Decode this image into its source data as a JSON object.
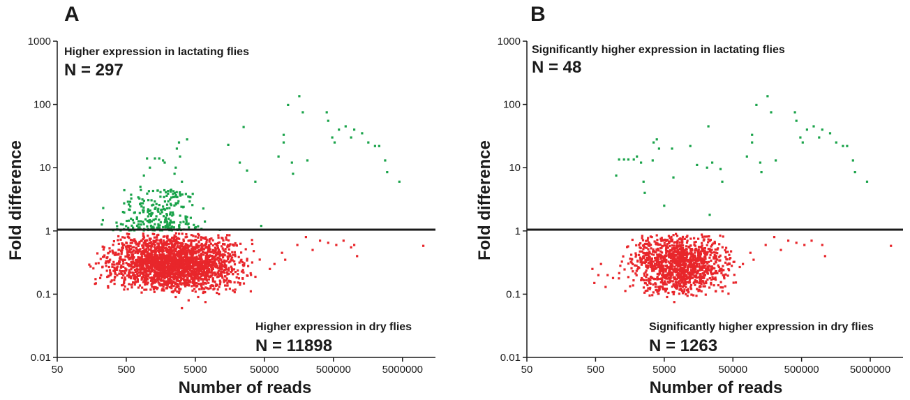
{
  "colors": {
    "up": "#1aa34a",
    "down": "#e8262b",
    "axis": "#1a1a1a"
  },
  "chart_data": [
    {
      "type": "scatter",
      "panel_label": "A",
      "xlabel": "Number of reads",
      "ylabel": "Fold difference",
      "x_scale": "log",
      "y_scale": "log",
      "xlim": [
        50,
        15000000
      ],
      "ylim": [
        0.01,
        1000
      ],
      "x_ticks": [
        50,
        500,
        5000,
        50000,
        500000,
        5000000
      ],
      "x_tick_labels": [
        "50",
        "500",
        "5000",
        "50000",
        "500000",
        "5000000"
      ],
      "y_ticks": [
        0.01,
        0.1,
        1,
        10,
        100,
        1000
      ],
      "y_tick_labels": [
        "0.01",
        "0.1",
        "1",
        "10",
        "100",
        "1000"
      ],
      "reference_line_y": 1,
      "annotations": {
        "upper_label": "Higher expression in lactating flies",
        "upper_n": "N = 297",
        "lower_label": "Higher expression in dry flies",
        "lower_n": "N = 11898"
      },
      "series": [
        {
          "role": "up",
          "points": [
            [
              25000,
              44
            ],
            [
              110000,
              98
            ],
            [
              160000,
              135
            ],
            [
              180000,
              75
            ],
            [
              95000,
              33
            ],
            [
              95000,
              25
            ],
            [
              15000,
              23
            ],
            [
              22000,
              12
            ],
            [
              28000,
              9
            ],
            [
              37000,
              6
            ],
            [
              130000,
              8
            ],
            [
              125000,
              12
            ],
            [
              80000,
              15
            ],
            [
              210000,
              13
            ],
            [
              400000,
              75
            ],
            [
              420000,
              55
            ],
            [
              480000,
              30
            ],
            [
              520000,
              25
            ],
            [
              750000,
              45
            ],
            [
              600000,
              40
            ],
            [
              900000,
              30
            ],
            [
              1000000,
              40
            ],
            [
              1300000,
              35
            ],
            [
              1600000,
              25
            ],
            [
              2000000,
              22
            ],
            [
              2300000,
              22
            ],
            [
              2800000,
              13
            ],
            [
              3000000,
              8.5
            ],
            [
              4500000,
              6
            ],
            [
              3800,
              28
            ],
            [
              2900,
              25
            ],
            [
              3000,
              15
            ],
            [
              2600,
              10
            ],
            [
              2500,
              8
            ],
            [
              3200,
              6
            ],
            [
              1300,
              14
            ],
            [
              1000,
              14
            ],
            [
              1500,
              14
            ],
            [
              1700,
              13
            ],
            [
              1100,
              10
            ],
            [
              900,
              7.5
            ],
            [
              800,
              5
            ],
            [
              1800,
              12
            ],
            [
              2700,
              20
            ],
            [
              45000,
              1.2
            ]
          ],
          "cluster": {
            "x_range": [
              180,
              12000
            ],
            "y_range": [
              1.02,
              4.5
            ],
            "n": 260
          }
        },
        {
          "role": "down",
          "points": [
            [
              150000,
              0.6
            ],
            [
              200000,
              0.8
            ],
            [
              250000,
              0.5
            ],
            [
              320000,
              0.7
            ],
            [
              420000,
              0.65
            ],
            [
              550000,
              0.6
            ],
            [
              700000,
              0.7
            ],
            [
              1000000,
              0.6
            ],
            [
              1100000,
              0.4
            ],
            [
              900000,
              0.55
            ],
            [
              10000000,
              0.58
            ],
            [
              70000,
              0.3
            ],
            [
              90000,
              0.45
            ],
            [
              100000,
              0.35
            ],
            [
              60000,
              0.25
            ],
            [
              3200,
              0.06
            ],
            [
              4000,
              0.08
            ],
            [
              2600,
              0.09
            ],
            [
              7000,
              0.075
            ],
            [
              5500,
              0.09
            ],
            [
              11000,
              0.1
            ]
          ],
          "cluster": {
            "x_range": [
              120,
              55000
            ],
            "y_range": [
              0.1,
              0.97
            ],
            "n": 2400
          }
        }
      ]
    },
    {
      "type": "scatter",
      "panel_label": "B",
      "xlabel": "Number of reads",
      "ylabel": "Fold difference",
      "x_scale": "log",
      "y_scale": "log",
      "xlim": [
        50,
        15000000
      ],
      "ylim": [
        0.01,
        1000
      ],
      "x_ticks": [
        50,
        500,
        5000,
        50000,
        500000,
        5000000
      ],
      "x_tick_labels": [
        "50",
        "500",
        "5000",
        "50000",
        "500000",
        "5000000"
      ],
      "y_ticks": [
        0.01,
        0.1,
        1,
        10,
        100,
        1000
      ],
      "y_tick_labels": [
        "0.01",
        "0.1",
        "1",
        "10",
        "100",
        "1000"
      ],
      "reference_line_y": 1,
      "annotations": {
        "upper_label": "Significantly higher expression in lactating flies",
        "upper_n": "N = 48",
        "lower_label": "Significantly higher expression in dry flies",
        "lower_n": "N = 1263"
      },
      "series": [
        {
          "role": "up",
          "points": [
            [
              1000,
              7.5
            ],
            [
              1100,
              13.5
            ],
            [
              1300,
              13.5
            ],
            [
              1500,
              13.5
            ],
            [
              1800,
              13.5
            ],
            [
              2000,
              15
            ],
            [
              2300,
              12
            ],
            [
              2500,
              6
            ],
            [
              2600,
              4
            ],
            [
              3500,
              25
            ],
            [
              3400,
              13
            ],
            [
              4200,
              20
            ],
            [
              3900,
              28
            ],
            [
              5000,
              2.5
            ],
            [
              6800,
              7
            ],
            [
              6500,
              20
            ],
            [
              12000,
              22
            ],
            [
              15000,
              11
            ],
            [
              22000,
              45
            ],
            [
              21000,
              10
            ],
            [
              25000,
              12
            ],
            [
              23000,
              1.8
            ],
            [
              35000,
              6
            ],
            [
              80000,
              15
            ],
            [
              95000,
              33
            ],
            [
              95000,
              25
            ],
            [
              110000,
              98
            ],
            [
              125000,
              12
            ],
            [
              130000,
              8.5
            ],
            [
              160000,
              135
            ],
            [
              180000,
              75
            ],
            [
              210000,
              13
            ],
            [
              400000,
              75
            ],
            [
              420000,
              55
            ],
            [
              480000,
              30
            ],
            [
              520000,
              25
            ],
            [
              600000,
              40
            ],
            [
              750000,
              45
            ],
            [
              900000,
              30
            ],
            [
              1000000,
              40
            ],
            [
              1300000,
              35
            ],
            [
              1600000,
              25
            ],
            [
              2000000,
              22
            ],
            [
              2300000,
              22
            ],
            [
              2800000,
              13
            ],
            [
              3000000,
              8.5
            ],
            [
              4500000,
              6
            ],
            [
              33000,
              9.5
            ]
          ]
        },
        {
          "role": "down",
          "points": [
            [
              450,
              0.25
            ],
            [
              480,
              0.15
            ],
            [
              550,
              0.2
            ],
            [
              600,
              0.3
            ],
            [
              700,
              0.13
            ],
            [
              750,
              0.2
            ],
            [
              900,
              0.18
            ],
            [
              150000,
              0.6
            ],
            [
              200000,
              0.8
            ],
            [
              250000,
              0.5
            ],
            [
              320000,
              0.7
            ],
            [
              420000,
              0.65
            ],
            [
              550000,
              0.6
            ],
            [
              700000,
              0.7
            ],
            [
              1000000,
              0.6
            ],
            [
              1100000,
              0.4
            ],
            [
              10000000,
              0.58
            ],
            [
              70000,
              0.3
            ],
            [
              90000,
              0.45
            ],
            [
              100000,
              0.35
            ],
            [
              7000,
              0.075
            ],
            [
              5500,
              0.09
            ]
          ],
          "cluster": {
            "x_range": [
              900,
              80000
            ],
            "y_range": [
              0.09,
              0.95
            ],
            "n": 1240
          }
        }
      ]
    }
  ]
}
